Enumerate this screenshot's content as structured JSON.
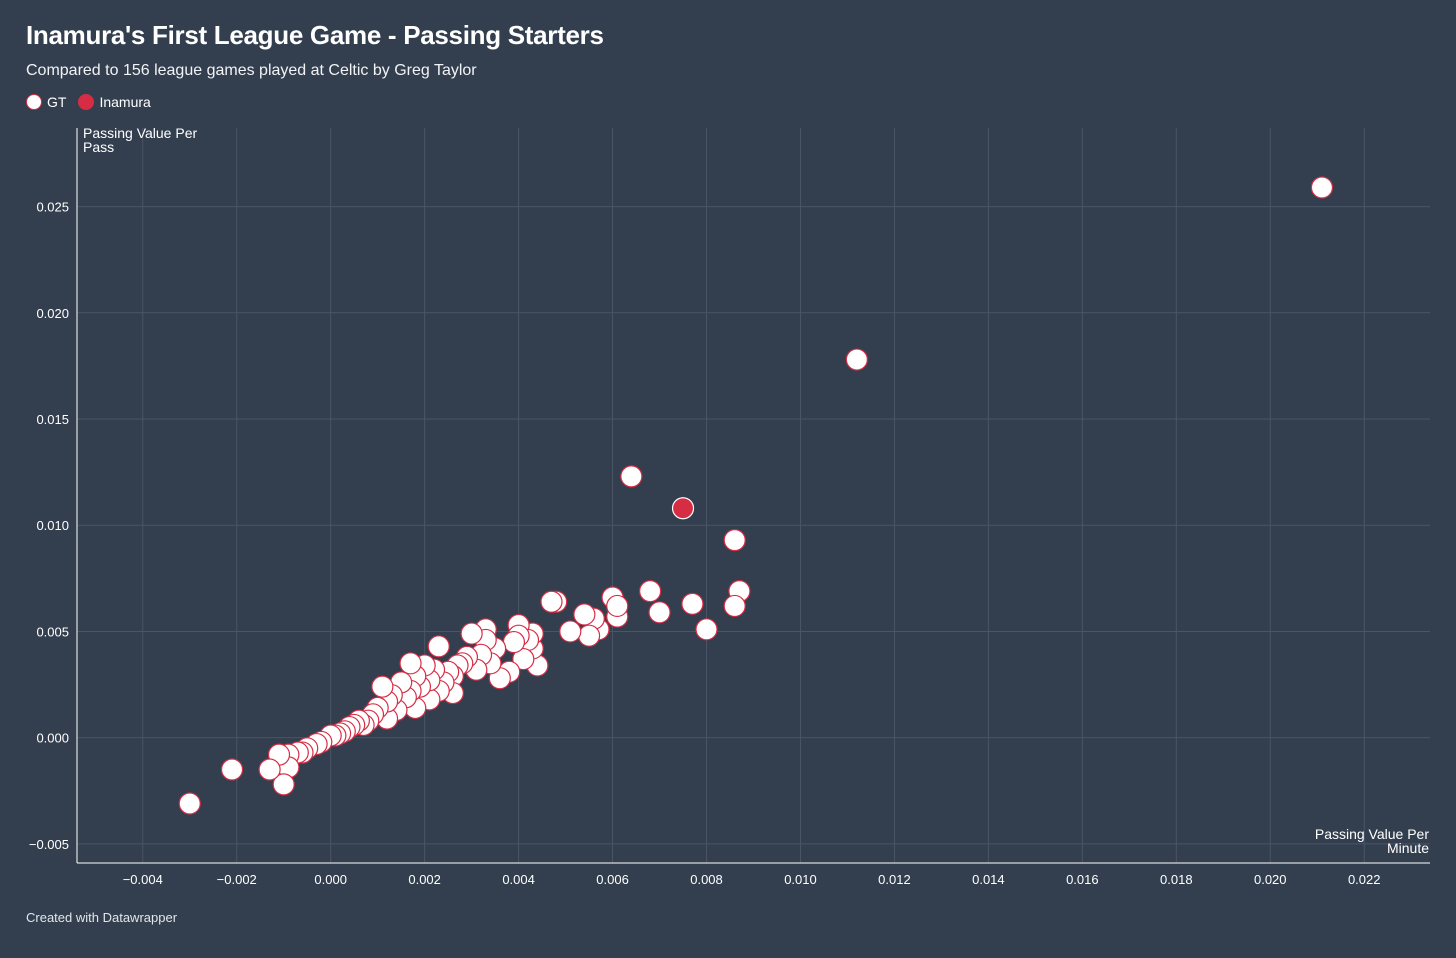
{
  "title": "Inamura's First League Game - Passing Starters",
  "subtitle": "Compared to 156 league games played at Celtic by Greg Taylor",
  "footer": "Created with Datawrapper",
  "colors": {
    "background": "#333f4f",
    "gt_fill": "#ffffff",
    "gt_stroke": "#d62d45",
    "inamura_fill": "#d62d45",
    "inamura_stroke": "#ffffff",
    "grid": "#4a5566",
    "axis": "#ffffff"
  },
  "legend": [
    {
      "label": "GT",
      "series": "gt"
    },
    {
      "label": "Inamura",
      "series": "inamura"
    }
  ],
  "chart_data": {
    "type": "scatter",
    "title": "Inamura's First League Game - Passing Starters",
    "xlabel_lines": [
      "Passing Value Per",
      "Minute"
    ],
    "ylabel_lines": [
      "Passing Value Per",
      "Pass"
    ],
    "xlim": [
      -0.0054,
      0.0234
    ],
    "ylim": [
      -0.0059,
      0.0287
    ],
    "x_ticks": [
      -0.004,
      -0.002,
      0.0,
      0.002,
      0.004,
      0.006,
      0.008,
      0.01,
      0.012,
      0.014,
      0.016,
      0.018,
      0.02,
      0.022
    ],
    "x_tick_labels": [
      "−0.004",
      "−0.002",
      "0.000",
      "0.002",
      "0.004",
      "0.006",
      "0.008",
      "0.010",
      "0.012",
      "0.014",
      "0.016",
      "0.018",
      "0.020",
      "0.022"
    ],
    "y_ticks": [
      -0.005,
      0.0,
      0.005,
      0.01,
      0.015,
      0.02,
      0.025
    ],
    "y_tick_labels": [
      "−0.005",
      "0.000",
      "0.005",
      "0.010",
      "0.015",
      "0.020",
      "0.025"
    ],
    "grid": true,
    "series": [
      {
        "name": "GT",
        "key": "gt",
        "points": [
          [
            0.0211,
            0.0259
          ],
          [
            0.0112,
            0.0178
          ],
          [
            0.0064,
            0.0123
          ],
          [
            0.0086,
            0.0093
          ],
          [
            0.0087,
            0.0069
          ],
          [
            0.0086,
            0.0062
          ],
          [
            0.008,
            0.0051
          ],
          [
            0.0077,
            0.0063
          ],
          [
            0.007,
            0.0059
          ],
          [
            0.0068,
            0.0069
          ],
          [
            0.0061,
            0.0057
          ],
          [
            0.006,
            0.0066
          ],
          [
            0.0061,
            0.0062
          ],
          [
            0.0057,
            0.0051
          ],
          [
            0.0056,
            0.0056
          ],
          [
            0.0055,
            0.0048
          ],
          [
            0.0054,
            0.0058
          ],
          [
            0.0051,
            0.005
          ],
          [
            0.0048,
            0.0064
          ],
          [
            0.0047,
            0.0064
          ],
          [
            0.0044,
            0.0034
          ],
          [
            0.0043,
            0.0042
          ],
          [
            0.0043,
            0.0049
          ],
          [
            0.0042,
            0.0046
          ],
          [
            0.0041,
            0.0037
          ],
          [
            0.004,
            0.0053
          ],
          [
            0.004,
            0.0048
          ],
          [
            0.0039,
            0.0045
          ],
          [
            0.0038,
            0.0031
          ],
          [
            0.0036,
            0.0028
          ],
          [
            0.0035,
            0.0042
          ],
          [
            0.0034,
            0.0035
          ],
          [
            0.0033,
            0.0051
          ],
          [
            0.0033,
            0.0046
          ],
          [
            0.0032,
            0.0039
          ],
          [
            0.0031,
            0.0032
          ],
          [
            0.003,
            0.0049
          ],
          [
            0.0029,
            0.0038
          ],
          [
            0.0028,
            0.0035
          ],
          [
            0.0027,
            0.0034
          ],
          [
            0.0026,
            0.0029
          ],
          [
            0.0026,
            0.0021
          ],
          [
            0.0025,
            0.0031
          ],
          [
            0.0024,
            0.0026
          ],
          [
            0.0023,
            0.0043
          ],
          [
            0.0023,
            0.0022
          ],
          [
            0.0022,
            0.0032
          ],
          [
            0.0021,
            0.0018
          ],
          [
            0.0021,
            0.0027
          ],
          [
            0.002,
            0.0034
          ],
          [
            0.0019,
            0.0024
          ],
          [
            0.0018,
            0.0014
          ],
          [
            0.0018,
            0.0029
          ],
          [
            0.0017,
            0.0035
          ],
          [
            0.0017,
            0.0022
          ],
          [
            0.0016,
            0.0019
          ],
          [
            0.0015,
            0.0026
          ],
          [
            0.0014,
            0.0013
          ],
          [
            0.0013,
            0.002
          ],
          [
            0.0012,
            0.0009
          ],
          [
            0.0012,
            0.0017
          ],
          [
            0.0011,
            0.0024
          ],
          [
            0.001,
            0.0014
          ],
          [
            0.0009,
            0.0011
          ],
          [
            0.0008,
            0.0008
          ],
          [
            0.0007,
            0.0006
          ],
          [
            0.0006,
            0.0008
          ],
          [
            0.0005,
            0.0006
          ],
          [
            0.0004,
            0.0005
          ],
          [
            0.0003,
            0.0003
          ],
          [
            0.0002,
            0.0002
          ],
          [
            0.0001,
            0.0001
          ],
          [
            0.0,
            0.0001
          ],
          [
            -0.0002,
            -0.0002
          ],
          [
            -0.0003,
            -0.0003
          ],
          [
            -0.0005,
            -0.0005
          ],
          [
            -0.0006,
            -0.0007
          ],
          [
            -0.0007,
            -0.0007
          ],
          [
            -0.0009,
            -0.0008
          ],
          [
            -0.0009,
            -0.0014
          ],
          [
            -0.001,
            -0.0022
          ],
          [
            -0.0011,
            -0.0008
          ],
          [
            -0.0013,
            -0.0015
          ],
          [
            -0.0021,
            -0.0015
          ],
          [
            -0.003,
            -0.0031
          ]
        ]
      },
      {
        "name": "Inamura",
        "key": "inamura",
        "points": [
          [
            0.0075,
            0.0108
          ]
        ]
      }
    ]
  }
}
